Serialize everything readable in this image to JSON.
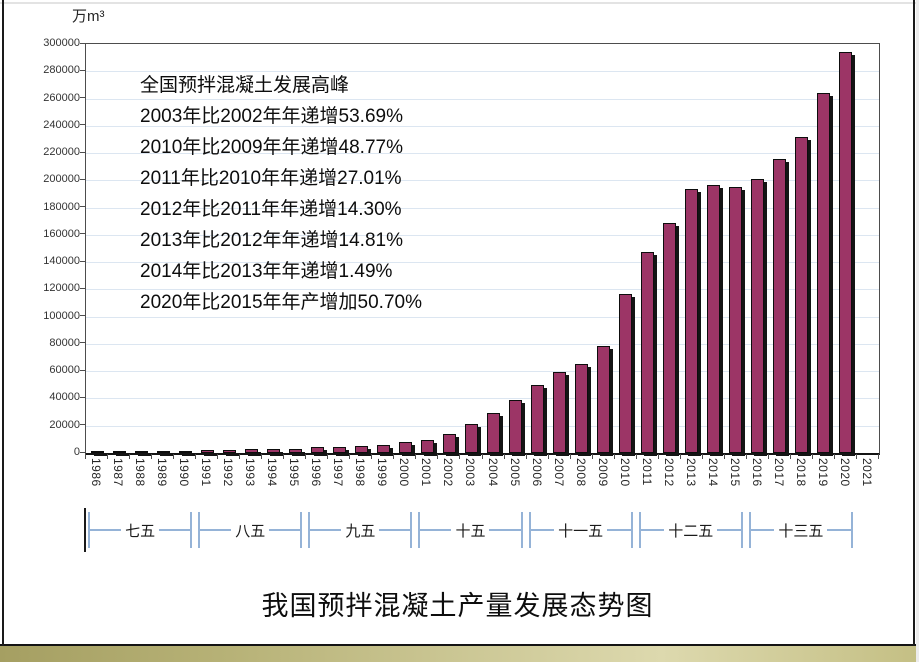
{
  "title": "我国预拌混凝土产量发展态势图",
  "chart_data": {
    "type": "bar",
    "title": "我国预拌混凝土产量发展态势图",
    "ylabel_unit": "万m³",
    "ylim": [
      0,
      300000
    ],
    "ytick_step": 20000,
    "grid": "horizontal",
    "legend": "none",
    "categories": [
      "1986",
      "1987",
      "1988",
      "1989",
      "1990",
      "1991",
      "1992",
      "1993",
      "1994",
      "1995",
      "1996",
      "1997",
      "1998",
      "1999",
      "2000",
      "2001",
      "2002",
      "2003",
      "2004",
      "2005",
      "2006",
      "2007",
      "2008",
      "2009",
      "2010",
      "2011",
      "2012",
      "2013",
      "2014",
      "2015",
      "2016",
      "2017",
      "2018",
      "2019",
      "2020",
      "2021"
    ],
    "values": [
      1000,
      1100,
      1300,
      1300,
      1200,
      2100,
      2500,
      2700,
      2700,
      3300,
      4100,
      4400,
      4800,
      6100,
      7800,
      9600,
      14000,
      21500,
      29000,
      39000,
      50000,
      59500,
      65000,
      78200,
      116300,
      147700,
      168900,
      193900,
      196800,
      195000,
      201000,
      216000,
      232000,
      264000,
      293900,
      null
    ],
    "annotation_lines": [
      "全国预拌混凝土发展高峰",
      "2003年比2002年年递增53.69%",
      "2010年比2009年年递增48.77%",
      "2011年比2010年年递增27.01%",
      "2012年比2011年年递增14.30%",
      "2013年比2012年年递增14.81%",
      "2014年比2013年年递增1.49%",
      "2020年比2015年年产增加50.70%"
    ],
    "period_brackets": [
      {
        "label": "七五",
        "start_year": "1986",
        "end_year": "1990"
      },
      {
        "label": "八五",
        "start_year": "1991",
        "end_year": "1995"
      },
      {
        "label": "九五",
        "start_year": "1996",
        "end_year": "2000"
      },
      {
        "label": "十五",
        "start_year": "2001",
        "end_year": "2005"
      },
      {
        "label": "十一五",
        "start_year": "2006",
        "end_year": "2010"
      },
      {
        "label": "十二五",
        "start_year": "2011",
        "end_year": "2015"
      },
      {
        "label": "十三五",
        "start_year": "2016",
        "end_year": "2020"
      }
    ],
    "colors": {
      "bar_fill": "#9c3566",
      "bar_border": "#0d0d0d",
      "bar_shadow": "#141414",
      "gridline": "#dce6f1",
      "bracket_blue": "#95b3d7",
      "footer_olive_dark": "#a59f62",
      "footer_olive_light": "#ddd9ae"
    }
  }
}
